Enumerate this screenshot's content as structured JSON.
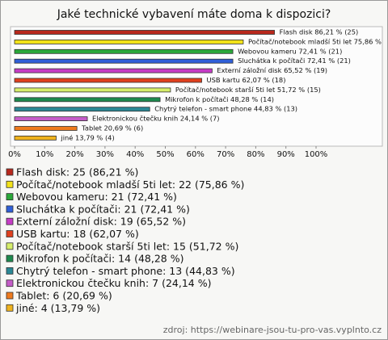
{
  "chart_data": {
    "type": "bar",
    "orientation": "horizontal",
    "title": "Jaké technické vybavení máte doma k dispozici?",
    "categories": [
      "Flash disk",
      "Počítač/notebook mladší 5ti let",
      "Webovou kameru",
      "Sluchátka k počítači",
      "Externí záložní disk",
      "USB kartu",
      "Počítač/notebook starší 5ti let",
      "Mikrofon k počítači",
      "Chytrý telefon - smart phone",
      "Elektronickou čtečku knih",
      "Tablet",
      "jiné"
    ],
    "values": [
      86.21,
      75.86,
      72.41,
      72.41,
      65.52,
      62.07,
      51.72,
      48.28,
      44.83,
      24.14,
      20.69,
      13.79
    ],
    "value_labels": [
      "Flash disk 86,21 % (25)",
      "Počítač/notebook mladší 5ti let 75,86 % (22)",
      "Webovou kameru 72,41 % (21)",
      "Sluchátka k počítači 72,41 % (21)",
      "Externí záložní disk 65,52 % (19)",
      "USB kartu 62,07 % (18)",
      "Počítač/notebook starší 5ti let 51,72 % (15)",
      "Mikrofon k počítači 48,28 % (14)",
      "Chytrý telefon - smart phone 44,83 % (13)",
      "Elektronickou čtečku knih 24,14 % (7)",
      "Tablet 20,69 % (6)",
      "jiné 13,79 % (4)"
    ],
    "legend_labels": [
      "Flash disk: 25 (86,21 %)",
      "Počítač/notebook mladší 5ti let: 22 (75,86 %)",
      "Webovou kameru: 21 (72,41 %)",
      "Sluchátka k počítači: 21 (72,41 %)",
      "Externí záložní disk: 19 (65,52 %)",
      "USB kartu: 18 (62,07 %)",
      "Počítač/notebook starší 5ti let: 15 (51,72 %)",
      "Mikrofon k počítači: 14 (48,28 %)",
      "Chytrý telefon - smart phone: 13 (44,83 %)",
      "Elektronickou čtečku knih: 7 (24,14 %)",
      "Tablet: 6 (20,69 %)",
      "jiné: 4 (13,79 %)"
    ],
    "colors": [
      "#b8281c",
      "#f2e21a",
      "#2aa83a",
      "#2f5fd8",
      "#c63cc6",
      "#e0401e",
      "#d6ee6a",
      "#1d8a4e",
      "#2a8895",
      "#c45cc8",
      "#ee7a1e",
      "#eeb21e"
    ],
    "xlim": [
      0,
      100
    ],
    "xticks": [
      {
        "value": 0,
        "label": "0%"
      },
      {
        "value": 10,
        "label": "10%"
      },
      {
        "value": 20,
        "label": "20%"
      },
      {
        "value": 30,
        "label": "30%"
      },
      {
        "value": 40,
        "label": "40%"
      },
      {
        "value": 50,
        "label": "50%"
      },
      {
        "value": 60,
        "label": "60%"
      },
      {
        "value": 70,
        "label": "70%"
      },
      {
        "value": 80,
        "label": "80%"
      },
      {
        "value": 90,
        "label": "90%"
      },
      {
        "value": 100,
        "label": "100%"
      }
    ],
    "source": "zdroj: https://webinare-jsou-tu-pro-vas.vyplnto.cz"
  }
}
